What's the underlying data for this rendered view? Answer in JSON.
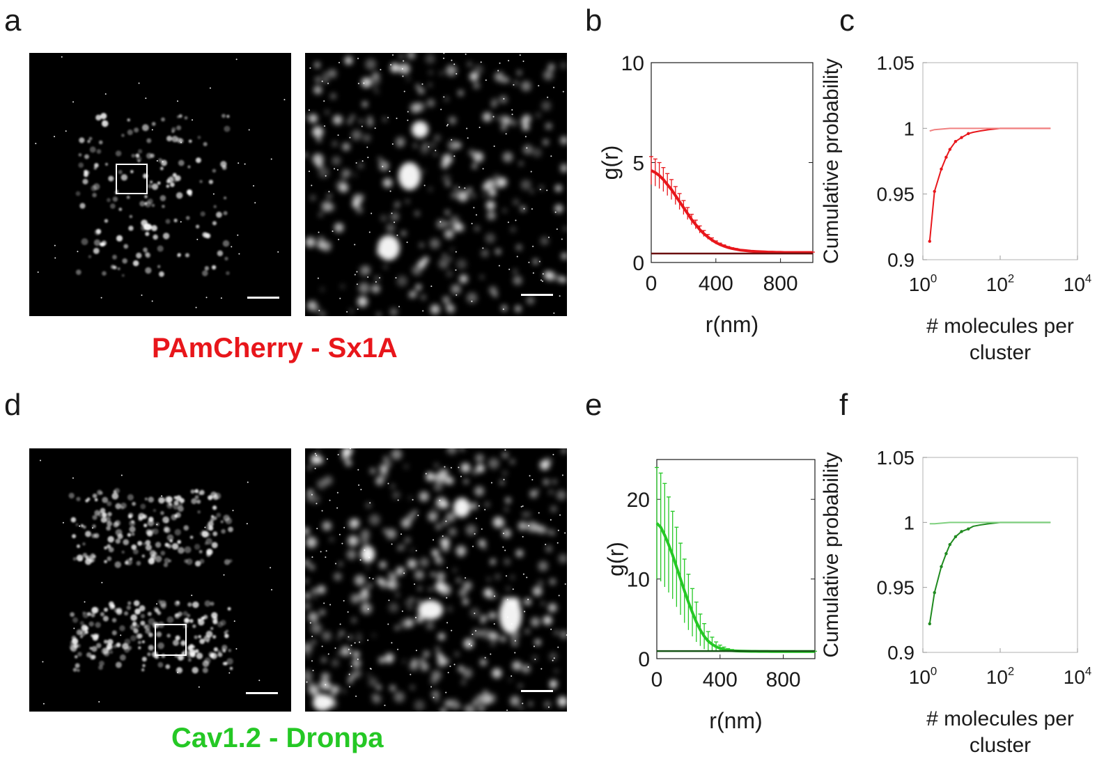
{
  "panels": {
    "a": "a",
    "b": "b",
    "c": "c",
    "d": "d",
    "e": "e",
    "f": "f"
  },
  "labels": {
    "top": "PAmCherry - Sx1A",
    "bottom": "Cav1.2 - Dronpa"
  },
  "colors": {
    "red": "#e8161b",
    "green": "#25c825",
    "dark_green": "#1f8a1f",
    "light_red": "#f08080",
    "light_green": "#7fd07f"
  },
  "chart_data": [
    {
      "panel": "b",
      "type": "line",
      "xlabel": "r(nm)",
      "ylabel": "g(r)",
      "xlim": [
        0,
        1000
      ],
      "ylim": [
        0,
        10
      ],
      "xticks": [
        0,
        400,
        800
      ],
      "yticks": [
        0,
        5,
        10
      ],
      "series": [
        {
          "color": "#e8161b",
          "errorbars": true,
          "x": [
            0,
            25,
            50,
            75,
            100,
            125,
            150,
            175,
            200,
            225,
            250,
            275,
            300,
            325,
            350,
            375,
            400,
            425,
            450,
            475,
            500,
            525,
            550,
            575,
            600,
            625,
            650,
            675,
            700,
            725,
            750,
            775,
            800,
            825,
            850,
            875,
            900,
            925,
            950,
            975,
            1000
          ],
          "y": [
            4.6,
            4.5,
            4.35,
            4.15,
            3.9,
            3.65,
            3.35,
            3.05,
            2.75,
            2.45,
            2.15,
            1.9,
            1.65,
            1.45,
            1.28,
            1.13,
            1.0,
            0.9,
            0.82,
            0.75,
            0.7,
            0.66,
            0.62,
            0.6,
            0.58,
            0.56,
            0.55,
            0.54,
            0.53,
            0.52,
            0.52,
            0.51,
            0.51,
            0.5,
            0.5,
            0.5,
            0.5,
            0.5,
            0.5,
            0.5,
            0.5
          ],
          "err": [
            0.7,
            0.68,
            0.65,
            0.6,
            0.55,
            0.5,
            0.45,
            0.4,
            0.35,
            0.3,
            0.26,
            0.22,
            0.18,
            0.15,
            0.12,
            0.1,
            0.08,
            0.07,
            0.06,
            0.05,
            0.04,
            0.04,
            0.03,
            0.03,
            0.03,
            0.02,
            0.02,
            0.02,
            0.02,
            0.02,
            0.02,
            0.02,
            0.02,
            0.02,
            0.02,
            0.02,
            0.02,
            0.02,
            0.02,
            0.02,
            0.02
          ]
        },
        {
          "color": "#6b1010",
          "errorbars": false,
          "x": [
            0,
            1000
          ],
          "y": [
            0.45,
            0.45
          ],
          "err": []
        }
      ]
    },
    {
      "panel": "c",
      "type": "line",
      "xlabel": "# molecules per cluster",
      "ylabel": "Cumulative probability",
      "xscale": "log",
      "xlim": [
        1,
        10000
      ],
      "ylim": [
        0.9,
        1.05
      ],
      "xticks": [
        1,
        100,
        10000
      ],
      "xtick_labels": [
        "10",
        "10",
        "10"
      ],
      "xtick_exponents": [
        "0",
        "2",
        "4"
      ],
      "yticks": [
        0.9,
        0.95,
        1,
        1.05
      ],
      "ytick_labels": [
        "0.9",
        "0.95",
        "1",
        "1.05"
      ],
      "series": [
        {
          "color": "#e8161b",
          "markers": true,
          "x": [
            1.5,
            2,
            3,
            4,
            5,
            7,
            10,
            15,
            20,
            30,
            50,
            100,
            200,
            500,
            1000,
            2000
          ],
          "y": [
            0.914,
            0.952,
            0.969,
            0.978,
            0.984,
            0.99,
            0.993,
            0.996,
            0.997,
            0.998,
            0.999,
            1.0,
            1.0,
            1.0,
            1.0,
            1.0
          ]
        },
        {
          "color": "#f08080",
          "markers": false,
          "x": [
            1.5,
            2,
            5,
            10,
            100,
            1000,
            2000
          ],
          "y": [
            0.998,
            0.999,
            1.0,
            1.0,
            1.0,
            1.0,
            1.0
          ]
        }
      ]
    },
    {
      "panel": "e",
      "type": "line",
      "xlabel": "r(nm)",
      "ylabel": "g(r)",
      "xlim": [
        0,
        1000
      ],
      "ylim": [
        0,
        25
      ],
      "xticks": [
        0,
        400,
        800
      ],
      "yticks": [
        0,
        10,
        20
      ],
      "series": [
        {
          "color": "#25c825",
          "errorbars": true,
          "x": [
            0,
            25,
            50,
            75,
            100,
            125,
            150,
            175,
            200,
            225,
            250,
            275,
            300,
            325,
            350,
            375,
            400,
            425,
            450,
            475,
            500,
            525,
            550,
            575,
            600,
            625,
            650,
            675,
            700,
            725,
            750,
            775,
            800,
            825,
            850,
            875,
            900,
            925,
            950,
            975,
            1000
          ],
          "y": [
            17.0,
            16.5,
            15.5,
            14.3,
            13.0,
            11.5,
            10.0,
            8.5,
            7.1,
            5.8,
            4.6,
            3.6,
            2.8,
            2.2,
            1.8,
            1.5,
            1.3,
            1.15,
            1.05,
            1.0,
            0.97,
            0.95,
            0.94,
            0.93,
            0.92,
            0.92,
            0.91,
            0.91,
            0.91,
            0.9,
            0.9,
            0.9,
            0.9,
            0.9,
            0.9,
            0.9,
            0.9,
            0.9,
            0.9,
            0.9,
            0.9
          ],
          "err": [
            7.0,
            6.8,
            6.5,
            6.0,
            5.5,
            5.0,
            4.5,
            4.0,
            3.5,
            3.0,
            2.5,
            2.0,
            1.6,
            1.2,
            0.9,
            0.6,
            0.4,
            0.3,
            0.2,
            0.15,
            0.1,
            0.08,
            0.06,
            0.05,
            0.04,
            0.04,
            0.03,
            0.03,
            0.03,
            0.03,
            0.03,
            0.03,
            0.03,
            0.03,
            0.03,
            0.03,
            0.03,
            0.03,
            0.03,
            0.03,
            0.03
          ]
        },
        {
          "color": "#145214",
          "errorbars": false,
          "x": [
            0,
            1000
          ],
          "y": [
            0.95,
            0.95
          ],
          "err": []
        }
      ]
    },
    {
      "panel": "f",
      "type": "line",
      "xlabel": "# molecules per cluster",
      "ylabel": "Cumulative probability",
      "xscale": "log",
      "xlim": [
        1,
        10000
      ],
      "ylim": [
        0.9,
        1.05
      ],
      "xticks": [
        1,
        100,
        10000
      ],
      "xtick_labels": [
        "10",
        "10",
        "10"
      ],
      "xtick_exponents": [
        "0",
        "2",
        "4"
      ],
      "yticks": [
        0.9,
        0.95,
        1,
        1.05
      ],
      "ytick_labels": [
        "0.9",
        "0.95",
        "1",
        "1.05"
      ],
      "series": [
        {
          "color": "#1f8a1f",
          "markers": true,
          "x": [
            1.5,
            2,
            3,
            4,
            5,
            7,
            10,
            15,
            20,
            30,
            50,
            100,
            200,
            500,
            1000,
            2000
          ],
          "y": [
            0.922,
            0.946,
            0.966,
            0.976,
            0.983,
            0.989,
            0.993,
            0.995,
            0.997,
            0.998,
            0.999,
            1.0,
            1.0,
            1.0,
            1.0,
            1.0
          ]
        },
        {
          "color": "#7fd07f",
          "markers": false,
          "x": [
            1.5,
            2,
            5,
            10,
            100,
            1000,
            2000
          ],
          "y": [
            0.999,
            0.999,
            1.0,
            1.0,
            1.0,
            1.0,
            1.0
          ]
        }
      ]
    }
  ]
}
